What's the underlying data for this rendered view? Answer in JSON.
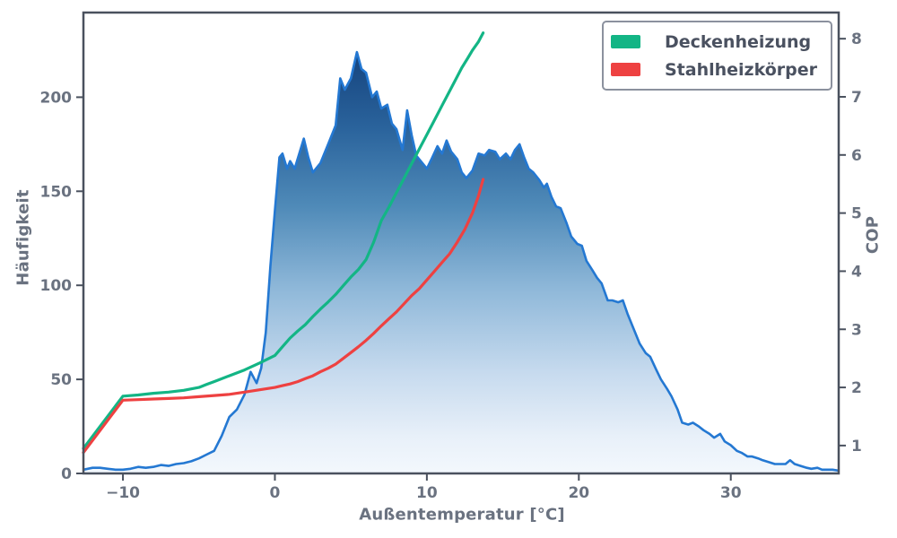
{
  "figure": {
    "xlabel": "Außentemperatur [°C]",
    "ylabel_left": "Häufigkeit",
    "ylabel_right": "COP",
    "legend": [
      {
        "label": "Deckenheizung",
        "color": "#13b585"
      },
      {
        "label": "Stahlheizkörper",
        "color": "#ee4141"
      }
    ]
  },
  "chart_data": {
    "type": "area",
    "title": "",
    "xlabel": "Außentemperatur [°C]",
    "ylabel": "Häufigkeit",
    "ylabel2": "COP",
    "grid": false,
    "legend_position": "upper right",
    "xlim": [
      -12.6,
      37.1
    ],
    "ylim_left": [
      0,
      245
    ],
    "ylim_right": [
      0.52,
      8.45
    ],
    "x_ticks": [
      {
        "v": -10,
        "label": "−10"
      },
      {
        "v": 0,
        "label": "0"
      },
      {
        "v": 10,
        "label": "10"
      },
      {
        "v": 20,
        "label": "20"
      },
      {
        "v": 30,
        "label": "30"
      }
    ],
    "y_left_ticks": [
      {
        "v": 0,
        "label": "0"
      },
      {
        "v": 50,
        "label": "50"
      },
      {
        "v": 100,
        "label": "100"
      },
      {
        "v": 150,
        "label": "150"
      },
      {
        "v": 200,
        "label": "200"
      }
    ],
    "y_right_ticks": [
      {
        "v": 1,
        "label": "1"
      },
      {
        "v": 2,
        "label": "2"
      },
      {
        "v": 3,
        "label": "3"
      },
      {
        "v": 4,
        "label": "4"
      },
      {
        "v": 5,
        "label": "5"
      },
      {
        "v": 6,
        "label": "6"
      },
      {
        "v": 7,
        "label": "7"
      },
      {
        "v": 8,
        "label": "8"
      }
    ],
    "style": {
      "spine_color": "#4a515e",
      "spine_width": 2.5,
      "tick_len": 8,
      "tick_width": 2,
      "tick_label_color": "#6a7280",
      "area_gradient": [
        {
          "offset": 0.0,
          "color": "#0f3a75"
        },
        {
          "offset": 0.1,
          "color": "#174680"
        },
        {
          "offset": 0.25,
          "color": "#2a639c"
        },
        {
          "offset": 0.42,
          "color": "#4f8ab8"
        },
        {
          "offset": 0.6,
          "color": "#8fb8d9"
        },
        {
          "offset": 0.78,
          "color": "#c6daee"
        },
        {
          "offset": 0.92,
          "color": "#e8f0f9"
        },
        {
          "offset": 1.0,
          "color": "#f3f8fd"
        }
      ]
    },
    "series": [
      {
        "name": "Häufigkeit",
        "axis": "left",
        "kind": "area",
        "color": "#2478d2",
        "line_width": 2.6,
        "points": [
          [
            -12.6,
            2
          ],
          [
            -12,
            3
          ],
          [
            -11.5,
            3
          ],
          [
            -11,
            2.5
          ],
          [
            -10.5,
            2
          ],
          [
            -10,
            2
          ],
          [
            -9.5,
            2.5
          ],
          [
            -9,
            3.5
          ],
          [
            -8.5,
            3
          ],
          [
            -8,
            3.5
          ],
          [
            -7.5,
            4.5
          ],
          [
            -7,
            4
          ],
          [
            -6.5,
            5
          ],
          [
            -6,
            5.5
          ],
          [
            -5.5,
            6.5
          ],
          [
            -5,
            8
          ],
          [
            -4.5,
            10
          ],
          [
            -4,
            12
          ],
          [
            -3.5,
            20
          ],
          [
            -3,
            30
          ],
          [
            -2.5,
            34
          ],
          [
            -2,
            42
          ],
          [
            -1.6,
            54
          ],
          [
            -1.2,
            48
          ],
          [
            -0.9,
            56
          ],
          [
            -0.6,
            75
          ],
          [
            -0.3,
            110
          ],
          [
            0,
            140
          ],
          [
            0.3,
            168
          ],
          [
            0.5,
            170
          ],
          [
            0.8,
            162
          ],
          [
            1,
            166
          ],
          [
            1.3,
            162
          ],
          [
            1.9,
            178
          ],
          [
            2.2,
            168
          ],
          [
            2.5,
            160
          ],
          [
            3,
            165
          ],
          [
            3.5,
            175
          ],
          [
            4,
            185
          ],
          [
            4.3,
            210
          ],
          [
            4.6,
            204
          ],
          [
            5,
            210
          ],
          [
            5.4,
            224
          ],
          [
            5.7,
            215
          ],
          [
            6,
            213
          ],
          [
            6.4,
            200
          ],
          [
            6.7,
            203
          ],
          [
            7,
            194
          ],
          [
            7.4,
            196
          ],
          [
            7.7,
            186
          ],
          [
            8,
            183
          ],
          [
            8.4,
            172
          ],
          [
            8.7,
            193
          ],
          [
            9,
            180
          ],
          [
            9.3,
            169
          ],
          [
            9.6,
            166
          ],
          [
            10,
            162
          ],
          [
            10.3,
            167
          ],
          [
            10.7,
            174
          ],
          [
            11,
            170
          ],
          [
            11.3,
            177
          ],
          [
            11.6,
            171
          ],
          [
            12,
            167
          ],
          [
            12.3,
            160
          ],
          [
            12.6,
            157
          ],
          [
            13,
            161
          ],
          [
            13.4,
            170
          ],
          [
            13.8,
            169
          ],
          [
            14.1,
            172
          ],
          [
            14.5,
            171
          ],
          [
            14.8,
            167
          ],
          [
            15.2,
            170
          ],
          [
            15.5,
            167
          ],
          [
            15.8,
            172
          ],
          [
            16.1,
            175
          ],
          [
            16.4,
            168
          ],
          [
            16.7,
            162
          ],
          [
            17,
            160
          ],
          [
            17.4,
            156
          ],
          [
            17.7,
            152
          ],
          [
            17.9,
            154
          ],
          [
            18.2,
            147
          ],
          [
            18.5,
            142
          ],
          [
            18.8,
            141
          ],
          [
            19.2,
            133
          ],
          [
            19.5,
            126
          ],
          [
            19.9,
            122
          ],
          [
            20.2,
            121
          ],
          [
            20.5,
            113
          ],
          [
            20.9,
            108
          ],
          [
            21.2,
            104
          ],
          [
            21.5,
            101
          ],
          [
            21.9,
            92
          ],
          [
            22.2,
            92
          ],
          [
            22.6,
            91
          ],
          [
            22.9,
            92
          ],
          [
            23.2,
            85
          ],
          [
            23.6,
            77
          ],
          [
            24,
            69
          ],
          [
            24.4,
            64
          ],
          [
            24.7,
            62
          ],
          [
            25.1,
            55
          ],
          [
            25.4,
            50
          ],
          [
            25.8,
            45
          ],
          [
            26.1,
            41
          ],
          [
            26.5,
            34
          ],
          [
            26.8,
            27
          ],
          [
            27.2,
            26
          ],
          [
            27.5,
            27
          ],
          [
            27.9,
            25
          ],
          [
            28.2,
            23
          ],
          [
            28.6,
            21
          ],
          [
            28.9,
            19
          ],
          [
            29.3,
            21
          ],
          [
            29.6,
            17
          ],
          [
            30,
            15
          ],
          [
            30.4,
            12
          ],
          [
            30.7,
            11
          ],
          [
            31.1,
            9
          ],
          [
            31.4,
            9
          ],
          [
            31.8,
            8
          ],
          [
            32.1,
            7
          ],
          [
            32.5,
            6
          ],
          [
            32.9,
            5
          ],
          [
            33.2,
            5
          ],
          [
            33.6,
            5
          ],
          [
            33.9,
            7
          ],
          [
            34.2,
            5
          ],
          [
            34.6,
            4
          ],
          [
            35,
            3
          ],
          [
            35.3,
            2.5
          ],
          [
            35.7,
            3
          ],
          [
            36,
            2
          ],
          [
            36.4,
            2
          ],
          [
            36.7,
            2
          ],
          [
            37.1,
            1.5
          ]
        ]
      },
      {
        "name": "Deckenheizung",
        "axis": "right",
        "kind": "line",
        "color": "#13b585",
        "line_width": 3.2,
        "points": [
          [
            -12.6,
            0.95
          ],
          [
            -10,
            1.85
          ],
          [
            -9,
            1.87
          ],
          [
            -8,
            1.9
          ],
          [
            -7,
            1.92
          ],
          [
            -6,
            1.95
          ],
          [
            -5,
            2.0
          ],
          [
            -4.5,
            2.05
          ],
          [
            -4,
            2.1
          ],
          [
            -3,
            2.2
          ],
          [
            -2,
            2.3
          ],
          [
            -1,
            2.42
          ],
          [
            0,
            2.55
          ],
          [
            0.5,
            2.7
          ],
          [
            1,
            2.85
          ],
          [
            1.5,
            2.97
          ],
          [
            2,
            3.08
          ],
          [
            2.5,
            3.22
          ],
          [
            3,
            3.35
          ],
          [
            3.5,
            3.47
          ],
          [
            4,
            3.6
          ],
          [
            4.5,
            3.75
          ],
          [
            5,
            3.9
          ],
          [
            5.5,
            4.03
          ],
          [
            6,
            4.2
          ],
          [
            6.5,
            4.5
          ],
          [
            7,
            4.87
          ],
          [
            7.5,
            5.1
          ],
          [
            8,
            5.35
          ],
          [
            8.5,
            5.6
          ],
          [
            9,
            5.85
          ],
          [
            9.5,
            6.1
          ],
          [
            10,
            6.35
          ],
          [
            10.5,
            6.6
          ],
          [
            11,
            6.85
          ],
          [
            11.5,
            7.1
          ],
          [
            12,
            7.35
          ],
          [
            12.3,
            7.5
          ],
          [
            12.7,
            7.67
          ],
          [
            13,
            7.8
          ],
          [
            13.4,
            7.95
          ],
          [
            13.7,
            8.1
          ]
        ]
      },
      {
        "name": "Stahlheizkörper",
        "axis": "right",
        "kind": "line",
        "color": "#ee4141",
        "line_width": 3.2,
        "points": [
          [
            -12.6,
            0.88
          ],
          [
            -10,
            1.78
          ],
          [
            -9,
            1.79
          ],
          [
            -8,
            1.8
          ],
          [
            -7,
            1.81
          ],
          [
            -6,
            1.82
          ],
          [
            -5,
            1.84
          ],
          [
            -4,
            1.86
          ],
          [
            -3,
            1.88
          ],
          [
            -2,
            1.92
          ],
          [
            -1,
            1.96
          ],
          [
            0,
            2.0
          ],
          [
            0.5,
            2.03
          ],
          [
            1,
            2.06
          ],
          [
            1.5,
            2.1
          ],
          [
            2,
            2.15
          ],
          [
            2.5,
            2.2
          ],
          [
            3,
            2.27
          ],
          [
            3.5,
            2.33
          ],
          [
            4,
            2.4
          ],
          [
            4.5,
            2.5
          ],
          [
            5,
            2.6
          ],
          [
            5.5,
            2.7
          ],
          [
            6,
            2.81
          ],
          [
            6.5,
            2.93
          ],
          [
            7,
            3.06
          ],
          [
            7.5,
            3.18
          ],
          [
            8,
            3.3
          ],
          [
            8.5,
            3.44
          ],
          [
            9,
            3.58
          ],
          [
            9.5,
            3.7
          ],
          [
            10,
            3.85
          ],
          [
            10.5,
            4.0
          ],
          [
            11,
            4.15
          ],
          [
            11.5,
            4.3
          ],
          [
            12,
            4.5
          ],
          [
            12.5,
            4.72
          ],
          [
            13,
            5.0
          ],
          [
            13.4,
            5.3
          ],
          [
            13.7,
            5.58
          ]
        ]
      }
    ]
  }
}
